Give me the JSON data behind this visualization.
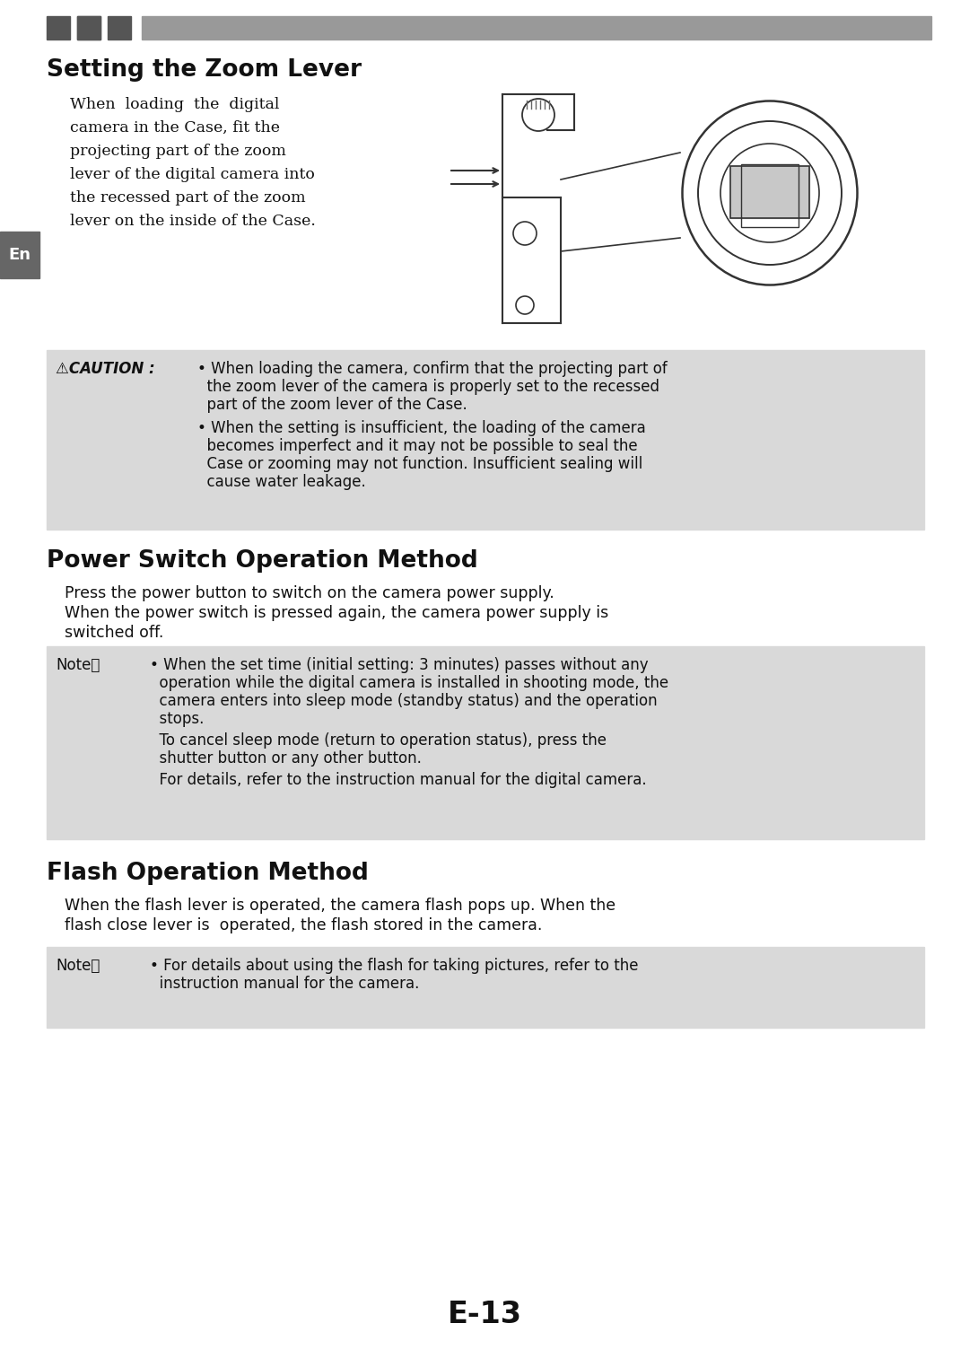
{
  "bg_color": "#ffffff",
  "header_bar_color": "#999999",
  "header_small_sq_color": "#555555",
  "en_tab_color": "#666666",
  "en_tab_text": "En",
  "section1_title": "Setting the Zoom Lever",
  "section1_body_lines": [
    "When  loading  the  digital",
    "camera in the Case, fit the",
    "projecting part of the zoom",
    "lever of the digital camera into",
    "the recessed part of the zoom",
    "lever on the inside of the Case."
  ],
  "caution_box_bg": "#d9d9d9",
  "caution_box_border": "#888888",
  "caution_label": "⚠CAUTION :",
  "caution_b1_line1": "• When loading the camera, confirm that the projecting part of",
  "caution_b1_line2": "  the zoom lever of the camera is properly set to the recessed",
  "caution_b1_line3": "  part of the zoom lever of the Case.",
  "caution_b2_line1": "• When the setting is insufficient, the loading of the camera",
  "caution_b2_line2": "  becomes imperfect and it may not be possible to seal the",
  "caution_b2_line3": "  Case or zooming may not function. Insufficient sealing will",
  "caution_b2_line4": "  cause water leakage.",
  "section2_title": "Power Switch Operation Method",
  "section2_line1": "Press the power button to switch on the camera power supply.",
  "section2_line2": "When the power switch is pressed again, the camera power supply is",
  "section2_line3": "switched off.",
  "note1_box_bg": "#d9d9d9",
  "note1_box_border": "#888888",
  "note1_label": "Note：",
  "note1_b1_line1": "• When the set time (initial setting: 3 minutes) passes without any",
  "note1_b1_line2": "  operation while the digital camera is installed in shooting mode, the",
  "note1_b1_line3": "  camera enters into sleep mode (standby status) and the operation",
  "note1_b1_line4": "  stops.",
  "note1_t2_line1": "  To cancel sleep mode (return to operation status), press the",
  "note1_t2_line2": "  shutter button or any other button.",
  "note1_t3_line1": "  For details, refer to the instruction manual for the digital camera.",
  "section3_title": "Flash Operation Method",
  "section3_line1": "When the flash lever is operated, the camera flash pops up. When the",
  "section3_line2": "flash close lever is  operated, the flash stored in the camera.",
  "note2_box_bg": "#d9d9d9",
  "note2_box_border": "#888888",
  "note2_label": "Note：",
  "note2_b1_line1": "• For details about using the flash for taking pictures, refer to the",
  "note2_b1_line2": "  instruction manual for the camera.",
  "page_number": "E-13",
  "text_color": "#111111",
  "lh": 22
}
